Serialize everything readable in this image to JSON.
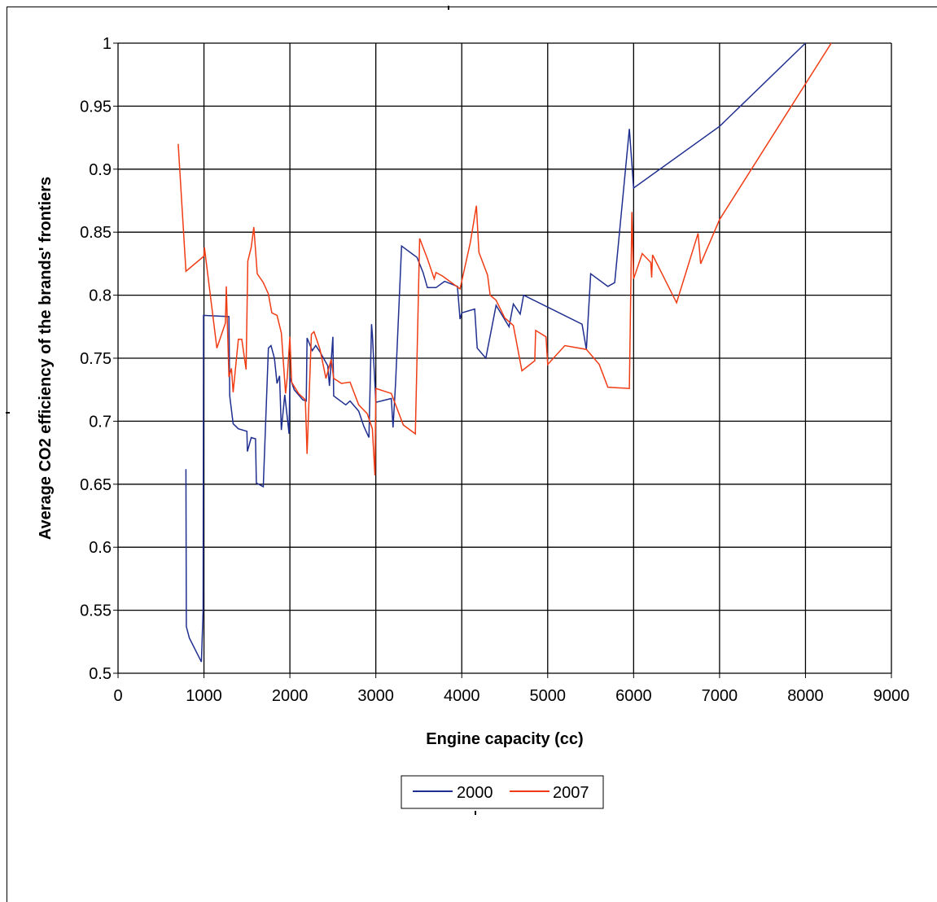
{
  "chart_data": {
    "type": "line",
    "xlabel": "Engine capacity (cc)",
    "ylabel": "Average CO2 efficiency of the brands' frontiers",
    "xlim": [
      0,
      9000
    ],
    "ylim": [
      0.5,
      1
    ],
    "x_ticks": [
      "0",
      "1000",
      "2000",
      "3000",
      "4000",
      "5000",
      "6000",
      "7000",
      "8000",
      "9000"
    ],
    "y_ticks": [
      "0.5",
      "0.55",
      "0.6",
      "0.65",
      "0.7",
      "0.75",
      "0.8",
      "0.85",
      "0.9",
      "0.95",
      "1"
    ],
    "grid": true,
    "legend_position": "bottom",
    "series": [
      {
        "name": "2000",
        "color": "#1f2f8f",
        "points": [
          [
            790,
            0.662
          ],
          [
            795,
            0.537
          ],
          [
            830,
            0.528
          ],
          [
            970,
            0.509
          ],
          [
            990,
            0.55
          ],
          [
            995,
            0.784
          ],
          [
            1290,
            0.783
          ],
          [
            1300,
            0.72
          ],
          [
            1340,
            0.698
          ],
          [
            1400,
            0.694
          ],
          [
            1500,
            0.692
          ],
          [
            1505,
            0.676
          ],
          [
            1550,
            0.687
          ],
          [
            1600,
            0.686
          ],
          [
            1610,
            0.651
          ],
          [
            1690,
            0.648
          ],
          [
            1750,
            0.758
          ],
          [
            1780,
            0.76
          ],
          [
            1820,
            0.75
          ],
          [
            1850,
            0.73
          ],
          [
            1880,
            0.736
          ],
          [
            1900,
            0.693
          ],
          [
            1940,
            0.721
          ],
          [
            1990,
            0.69
          ],
          [
            2000,
            0.735
          ],
          [
            2050,
            0.725
          ],
          [
            2150,
            0.717
          ],
          [
            2190,
            0.716
          ],
          [
            2200,
            0.766
          ],
          [
            2260,
            0.756
          ],
          [
            2300,
            0.76
          ],
          [
            2350,
            0.755
          ],
          [
            2440,
            0.744
          ],
          [
            2460,
            0.728
          ],
          [
            2500,
            0.767
          ],
          [
            2510,
            0.72
          ],
          [
            2650,
            0.713
          ],
          [
            2700,
            0.716
          ],
          [
            2800,
            0.708
          ],
          [
            2860,
            0.696
          ],
          [
            2920,
            0.687
          ],
          [
            2950,
            0.777
          ],
          [
            2960,
            0.769
          ],
          [
            3000,
            0.715
          ],
          [
            3180,
            0.718
          ],
          [
            3200,
            0.695
          ],
          [
            3230,
            0.73
          ],
          [
            3300,
            0.839
          ],
          [
            3480,
            0.83
          ],
          [
            3550,
            0.818
          ],
          [
            3600,
            0.806
          ],
          [
            3700,
            0.806
          ],
          [
            3800,
            0.811
          ],
          [
            3950,
            0.807
          ],
          [
            3980,
            0.781
          ],
          [
            4000,
            0.786
          ],
          [
            4150,
            0.789
          ],
          [
            4180,
            0.758
          ],
          [
            4280,
            0.75
          ],
          [
            4400,
            0.792
          ],
          [
            4550,
            0.775
          ],
          [
            4600,
            0.793
          ],
          [
            4680,
            0.785
          ],
          [
            4720,
            0.8
          ],
          [
            5400,
            0.777
          ],
          [
            5450,
            0.757
          ],
          [
            5500,
            0.817
          ],
          [
            5700,
            0.807
          ],
          [
            5780,
            0.81
          ],
          [
            5950,
            0.932
          ],
          [
            6000,
            0.885
          ],
          [
            7000,
            0.934
          ],
          [
            8000,
            1.0
          ]
        ]
      },
      {
        "name": "2007",
        "color": "#f03c14",
        "points": [
          [
            700,
            0.92
          ],
          [
            790,
            0.819
          ],
          [
            1000,
            0.831
          ],
          [
            1005,
            0.838
          ],
          [
            1150,
            0.758
          ],
          [
            1250,
            0.778
          ],
          [
            1260,
            0.807
          ],
          [
            1290,
            0.735
          ],
          [
            1320,
            0.742
          ],
          [
            1340,
            0.723
          ],
          [
            1400,
            0.765
          ],
          [
            1440,
            0.765
          ],
          [
            1490,
            0.741
          ],
          [
            1510,
            0.827
          ],
          [
            1550,
            0.838
          ],
          [
            1580,
            0.854
          ],
          [
            1620,
            0.817
          ],
          [
            1690,
            0.81
          ],
          [
            1750,
            0.801
          ],
          [
            1790,
            0.786
          ],
          [
            1850,
            0.784
          ],
          [
            1900,
            0.77
          ],
          [
            1950,
            0.722
          ],
          [
            1970,
            0.735
          ],
          [
            2000,
            0.767
          ],
          [
            2020,
            0.731
          ],
          [
            2100,
            0.722
          ],
          [
            2180,
            0.717
          ],
          [
            2200,
            0.674
          ],
          [
            2250,
            0.769
          ],
          [
            2280,
            0.771
          ],
          [
            2350,
            0.757
          ],
          [
            2420,
            0.734
          ],
          [
            2480,
            0.749
          ],
          [
            2510,
            0.734
          ],
          [
            2600,
            0.73
          ],
          [
            2700,
            0.731
          ],
          [
            2800,
            0.713
          ],
          [
            2900,
            0.706
          ],
          [
            2960,
            0.694
          ],
          [
            2990,
            0.657
          ],
          [
            3000,
            0.726
          ],
          [
            3180,
            0.722
          ],
          [
            3320,
            0.697
          ],
          [
            3460,
            0.69
          ],
          [
            3510,
            0.845
          ],
          [
            3600,
            0.829
          ],
          [
            3680,
            0.813
          ],
          [
            3700,
            0.818
          ],
          [
            3780,
            0.815
          ],
          [
            3980,
            0.805
          ],
          [
            4100,
            0.842
          ],
          [
            4170,
            0.871
          ],
          [
            4200,
            0.834
          ],
          [
            4300,
            0.816
          ],
          [
            4330,
            0.8
          ],
          [
            4400,
            0.796
          ],
          [
            4500,
            0.782
          ],
          [
            4600,
            0.776
          ],
          [
            4700,
            0.74
          ],
          [
            4850,
            0.748
          ],
          [
            4860,
            0.772
          ],
          [
            4980,
            0.767
          ],
          [
            5000,
            0.745
          ],
          [
            5200,
            0.76
          ],
          [
            5450,
            0.757
          ],
          [
            5600,
            0.745
          ],
          [
            5700,
            0.727
          ],
          [
            5950,
            0.726
          ],
          [
            5980,
            0.866
          ],
          [
            6000,
            0.813
          ],
          [
            6100,
            0.833
          ],
          [
            6200,
            0.826
          ],
          [
            6210,
            0.814
          ],
          [
            6220,
            0.832
          ],
          [
            6500,
            0.794
          ],
          [
            6750,
            0.849
          ],
          [
            6780,
            0.825
          ],
          [
            7000,
            0.86
          ],
          [
            8300,
            1.0
          ]
        ]
      }
    ]
  }
}
